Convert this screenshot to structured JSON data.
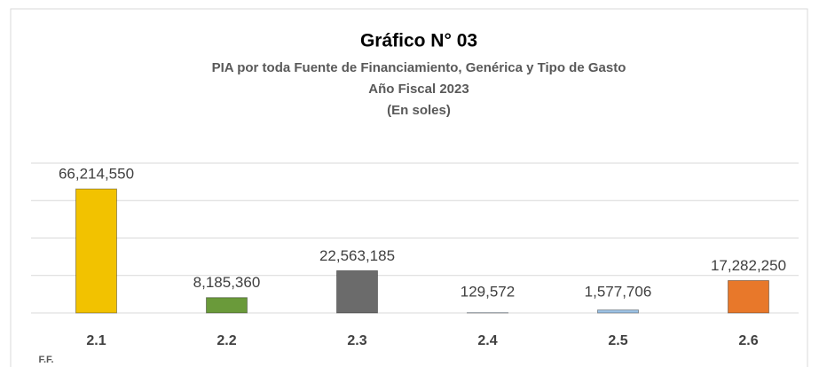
{
  "chart_data": {
    "type": "bar",
    "title": "Gráfico N° 03",
    "subtitle": [
      "PIA por toda Fuente de Financiamiento, Genérica y Tipo de Gasto",
      "Año Fiscal 2023",
      "(En soles)"
    ],
    "x_label": "F.F.",
    "categories": [
      "2.1",
      "2.2",
      "2.3",
      "2.4",
      "2.5",
      "2.6"
    ],
    "values": [
      66214550,
      8185360,
      22563185,
      129572,
      1577706,
      17282250
    ],
    "value_labels": [
      "66,214,550",
      "8,185,360",
      "22,563,185",
      "129,572",
      "1,577,706",
      "17,282,250"
    ],
    "colors": [
      "#f2c200",
      "#6a9a3a",
      "#6b6b6b",
      "#9dc3e6",
      "#9dc3e6",
      "#e8782a"
    ],
    "ylim": [
      0,
      80000000
    ],
    "yticks": [
      0,
      20000000,
      40000000,
      60000000,
      80000000
    ],
    "grid": true
  }
}
